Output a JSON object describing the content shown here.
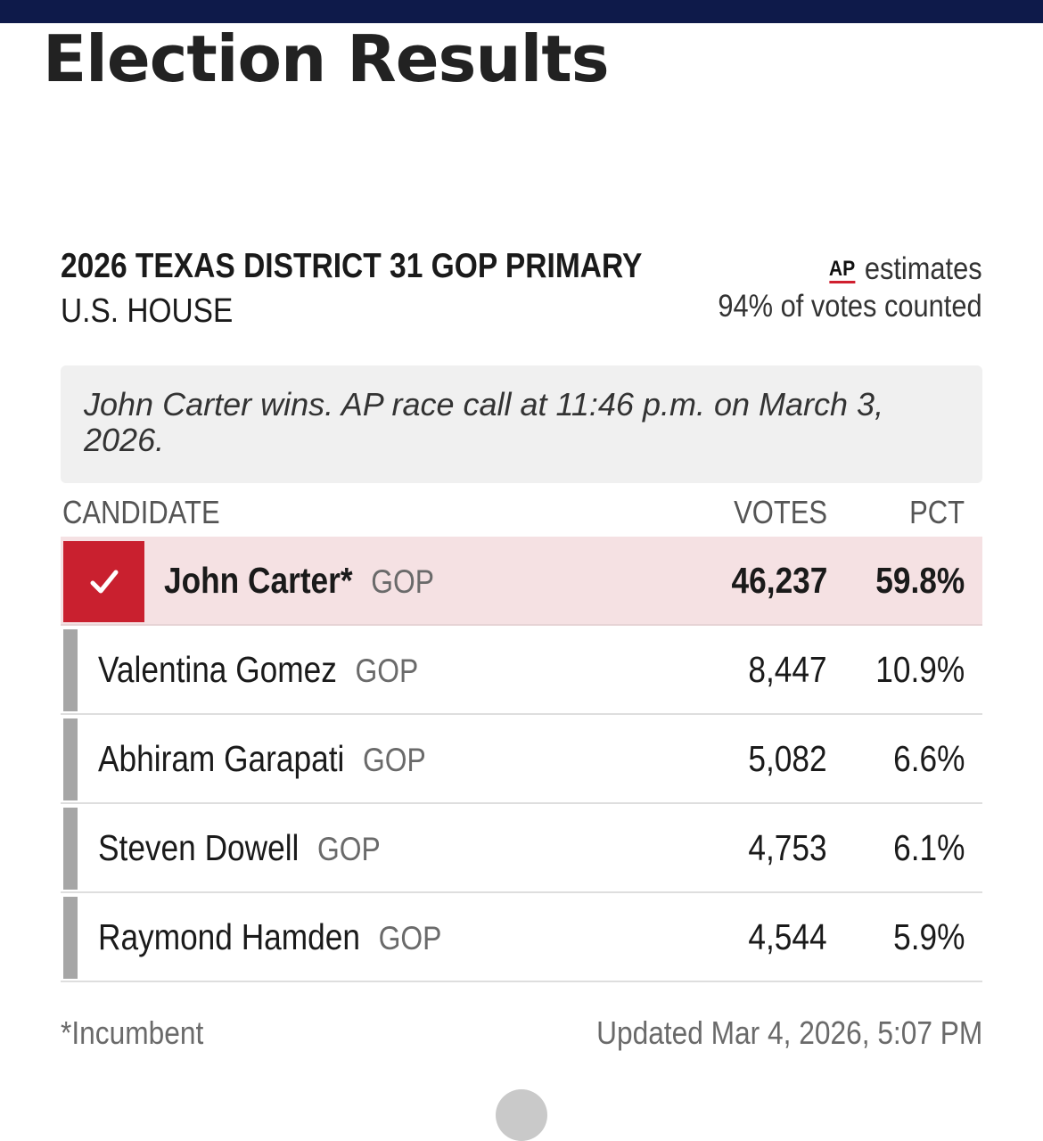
{
  "page": {
    "title": "Election Results"
  },
  "race": {
    "title": "2026 TEXAS DISTRICT 31 GOP PRIMARY",
    "subtitle": "U.S. HOUSE",
    "source_logo": "AP",
    "source_label": "estimates",
    "votes_counted": "94% of votes counted",
    "call_text": "John Carter wins. AP race call at 11:46 p.m. on March 3, 2026."
  },
  "table": {
    "headers": {
      "candidate": "CANDIDATE",
      "votes": "VOTES",
      "pct": "PCT"
    },
    "rows": [
      {
        "name": "John Carter*",
        "party": "GOP",
        "votes": "46,237",
        "pct": "59.8%",
        "winner": true
      },
      {
        "name": "Valentina Gomez",
        "party": "GOP",
        "votes": "8,447",
        "pct": "10.9%",
        "winner": false
      },
      {
        "name": "Abhiram Garapati",
        "party": "GOP",
        "votes": "5,082",
        "pct": "6.6%",
        "winner": false
      },
      {
        "name": "Steven Dowell",
        "party": "GOP",
        "votes": "4,753",
        "pct": "6.1%",
        "winner": false
      },
      {
        "name": "Raymond Hamden",
        "party": "GOP",
        "votes": "4,544",
        "pct": "5.9%",
        "winner": false
      }
    ]
  },
  "footer": {
    "incumbent_note": "*Incumbent",
    "updated": "Updated Mar 4, 2026, 5:07 PM"
  },
  "colors": {
    "header_bar": "#0e1a4a",
    "winner_accent": "#c9202f",
    "winner_row_bg": "#f5e1e3",
    "loser_stripe": "#a6a6a6"
  },
  "icons": {
    "winner": "checkmark-icon"
  }
}
